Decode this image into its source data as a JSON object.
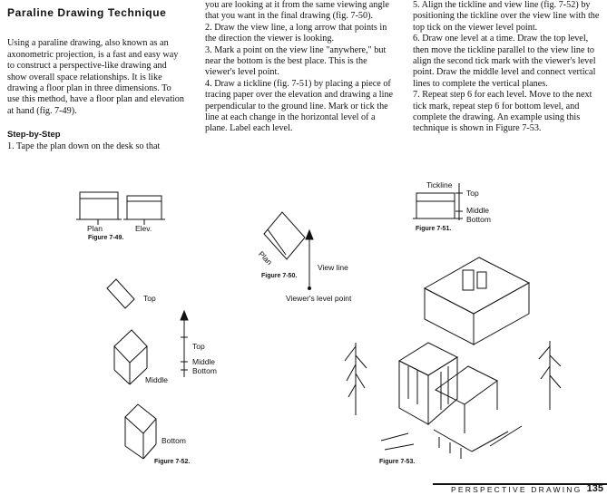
{
  "columns": {
    "left": {
      "title": "Paraline Drawing Technique",
      "intro": "Using a paraline drawing, also known as an axonometric projection, is a fast and easy way to construct a perspective-like drawing and show overall space relationships. It is like drawing a floor plan in three dimensions. To use this method, have a floor plan and elevation at hand (fig. 7-49).",
      "subhead": "Step-by-Step",
      "step1": "1. Tape the plan down on the desk so that"
    },
    "middle": {
      "cont": "you are looking at it from the same viewing angle that you want in the final drawing (fig. 7-50).",
      "step2": "2. Draw the view line, a long arrow that points in the direction the viewer is looking.",
      "step3": "3. Mark a point on the view line \"anywhere,\" but near the bottom is the best place. This is the viewer's level point.",
      "step4": "4. Draw a tickline (fig. 7-51) by placing a piece of tracing paper over the elevation and drawing a line perpendicular to the ground line. Mark or tick the line at each change in the horizontal level of a plane. Label each level."
    },
    "right": {
      "step5": "5. Align the tickline and view line (fig. 7-52) by positioning the tickline over the view line with the top tick on the viewer level point.",
      "step6": "6. Draw one level at a time. Draw the top level, then move the tickline parallel to the view line to align the second tick mark with the viewer's level point. Draw the middle level and connect vertical lines to complete the vertical planes.",
      "step7": "7. Repeat step 6 for each level. Move to the next tick mark, repeat step 6 for bottom level, and complete the drawing. An example using this technique is shown in Figure 7-53."
    }
  },
  "figures": {
    "f49": {
      "plan": "Plan",
      "elev": "Elev.",
      "caption": "Figure 7-49."
    },
    "f50": {
      "plan": "Plan",
      "view_line": "View line",
      "viewer_point": "Viewer's level point",
      "caption": "Figure 7-50."
    },
    "f51": {
      "tickline": "Tickline",
      "top": "Top",
      "middle": "Middle",
      "bottom": "Bottom",
      "caption": "Figure 7-51."
    },
    "f52": {
      "top_shape": "Top",
      "middle_shape": "Middle",
      "bottom_shape": "Bottom",
      "tick_top": "Top",
      "tick_middle": "Middle",
      "tick_bottom": "Bottom",
      "caption": "Figure 7-52."
    },
    "f53": {
      "caption": "Figure 7-53."
    }
  },
  "footer": {
    "running_head": "PERSPECTIVE DRAWING",
    "page_number": "135"
  }
}
